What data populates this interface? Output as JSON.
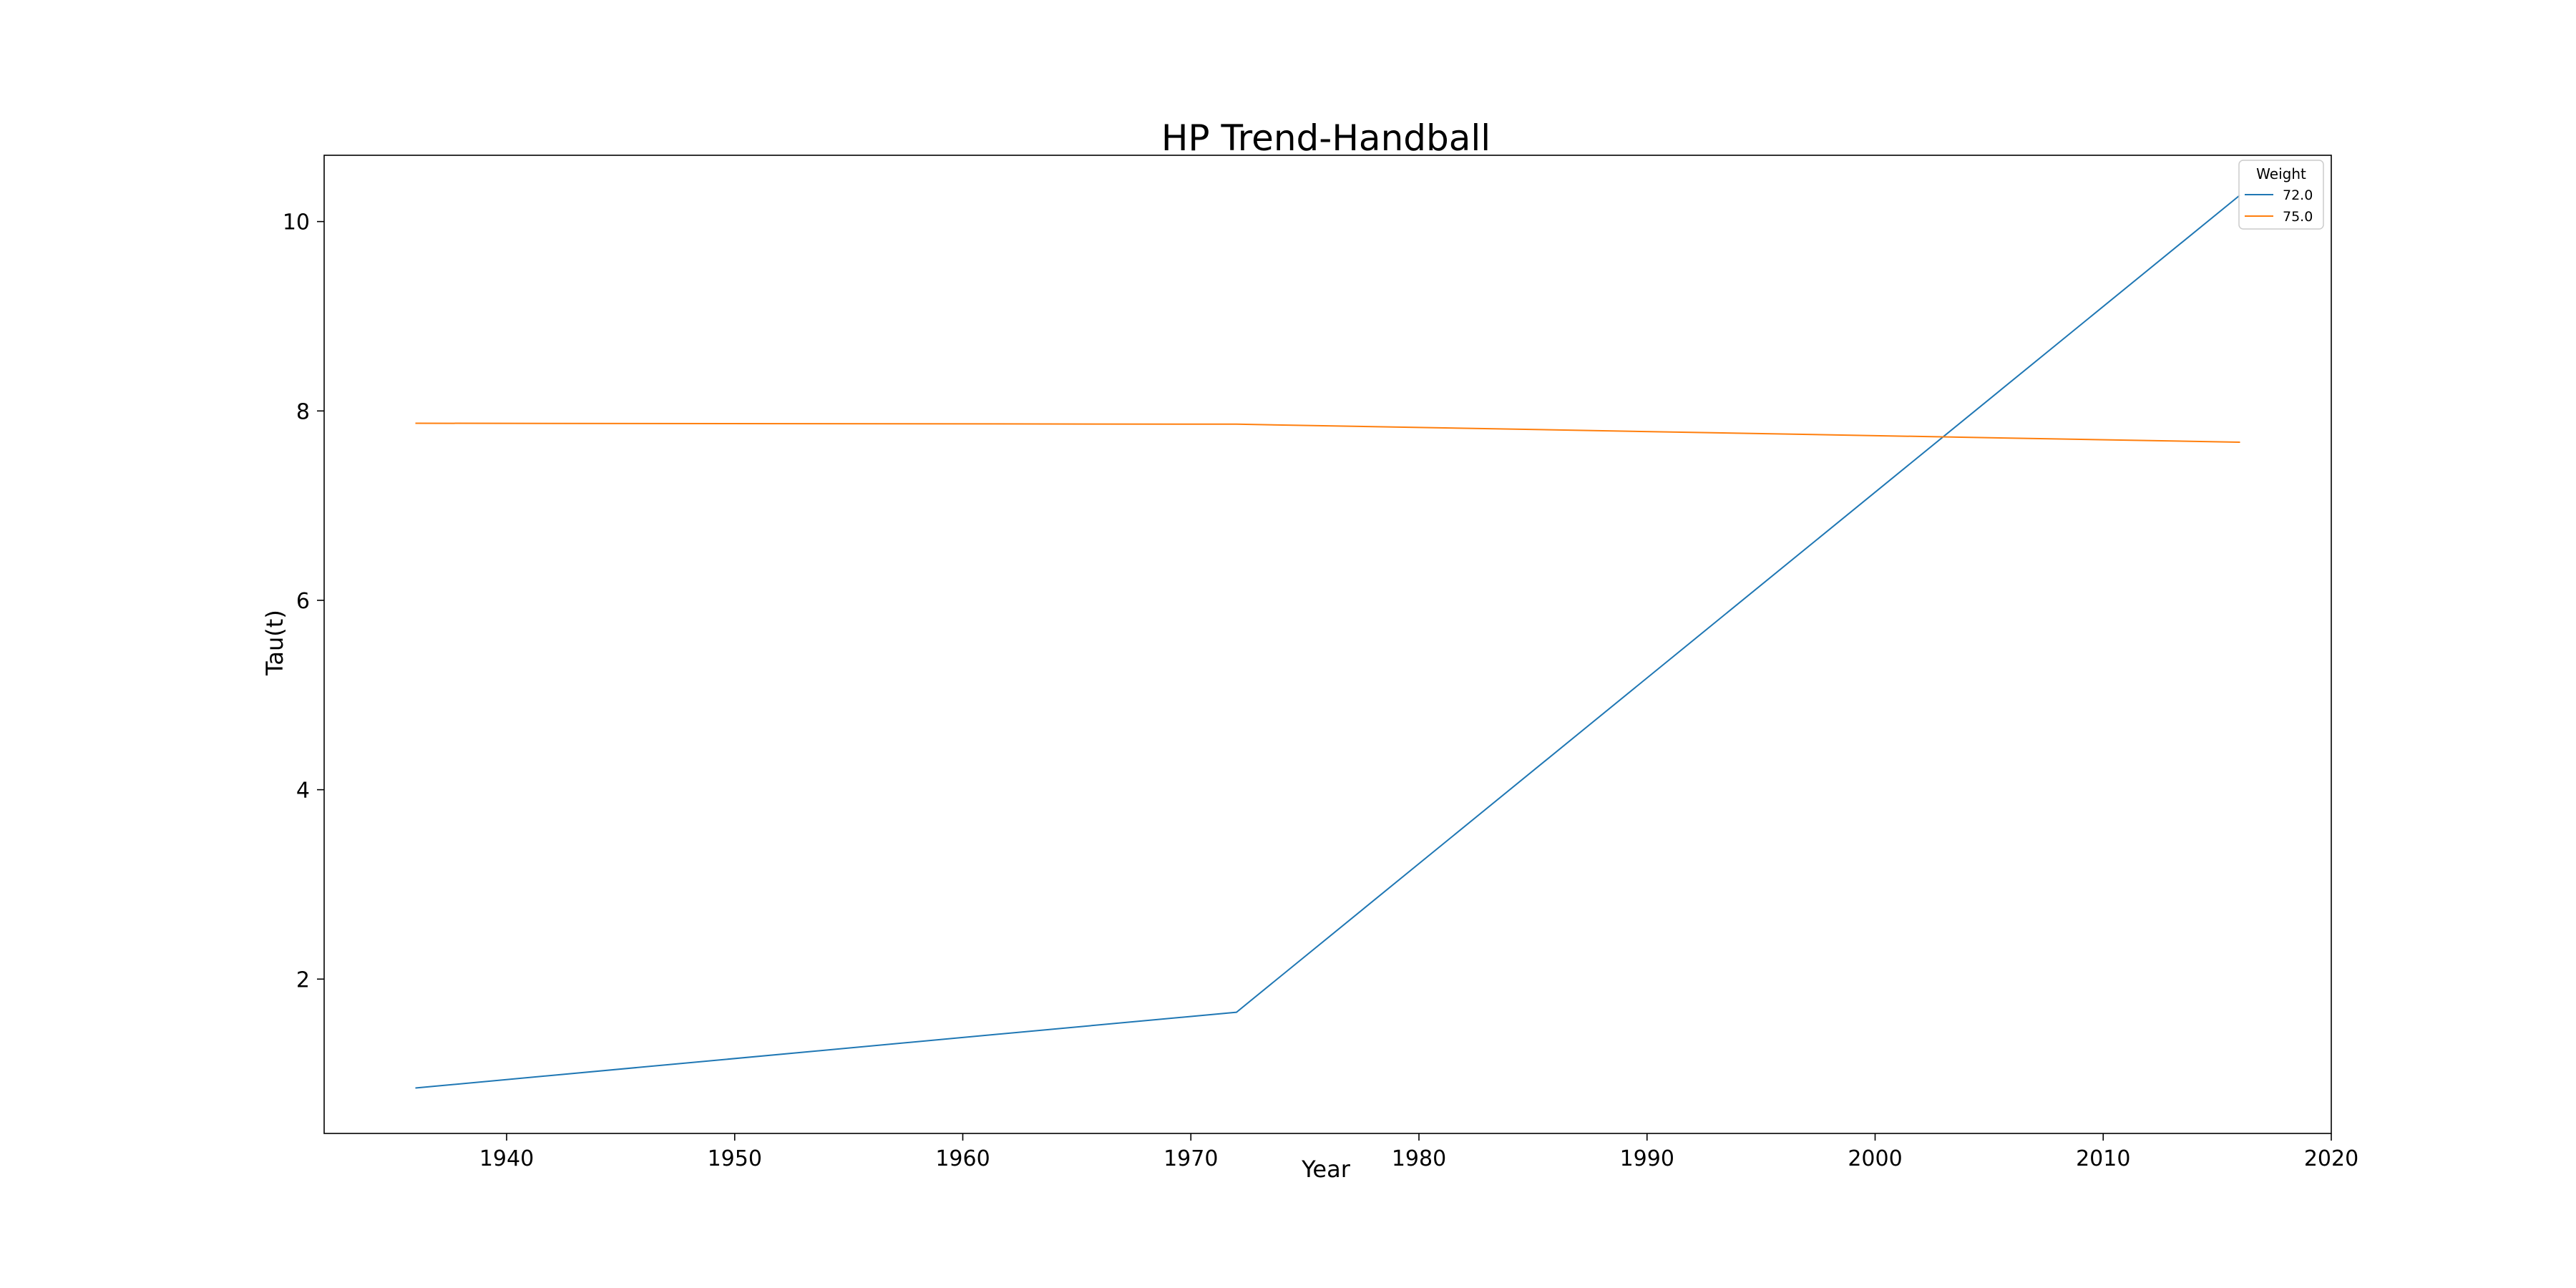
{
  "chart_data": {
    "type": "line",
    "title": "HP Trend-Handball",
    "xlabel": "Year",
    "ylabel": "Tau(t)",
    "xlim": [
      1932,
      2020
    ],
    "ylim": [
      0.37,
      10.7
    ],
    "xticks": [
      1940,
      1950,
      1960,
      1970,
      1980,
      1990,
      2000,
      2010,
      2020
    ],
    "yticks": [
      2,
      4,
      6,
      8,
      10
    ],
    "grid": false,
    "legend": {
      "title": "Weight",
      "position": "top-right"
    },
    "series": [
      {
        "name": "72.0",
        "color": "#1f77b4",
        "x": [
          1936,
          1972,
          2016
        ],
        "y": [
          0.85,
          1.65,
          10.28
        ]
      },
      {
        "name": "75.0",
        "color": "#ff7f0e",
        "x": [
          1936,
          1972,
          2016
        ],
        "y": [
          7.87,
          7.86,
          7.67
        ]
      }
    ]
  }
}
